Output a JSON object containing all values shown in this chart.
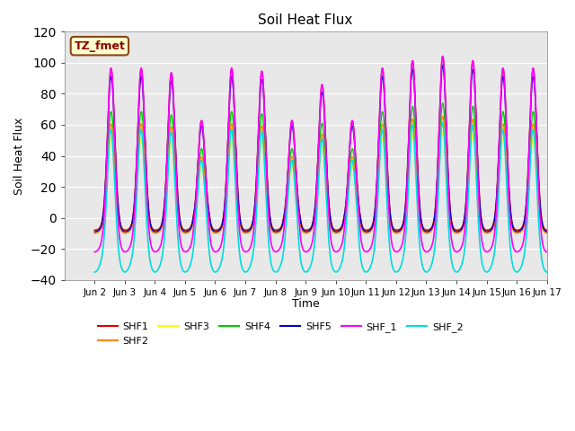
{
  "title": "Soil Heat Flux",
  "ylabel": "Soil Heat Flux",
  "xlabel": "Time",
  "xlim_days": [
    1,
    17
  ],
  "ylim": [
    -40,
    120
  ],
  "yticks": [
    -40,
    -20,
    0,
    20,
    40,
    60,
    80,
    100,
    120
  ],
  "xtick_labels": [
    "Jun 2",
    "Jun 3",
    "Jun 4",
    "Jun 5",
    "Jun 6",
    "Jun 7",
    "Jun 8",
    "Jun 9",
    "Jun 10",
    "Jun 11",
    "Jun 12",
    "Jun 13",
    "Jun 14",
    "Jun 15",
    "Jun 16",
    "Jun 17"
  ],
  "xtick_positions": [
    2,
    3,
    4,
    5,
    6,
    7,
    8,
    9,
    10,
    11,
    12,
    13,
    14,
    15,
    16,
    17
  ],
  "bg_color": "#e8e8e8",
  "series_order": [
    "SHF2",
    "SHF3",
    "SHF4",
    "SHF1",
    "SHF5",
    "SHF_1",
    "SHF_2"
  ],
  "series": {
    "SHF1": {
      "color": "#dd0000",
      "lw": 1.0
    },
    "SHF2": {
      "color": "#ff8800",
      "lw": 1.0
    },
    "SHF3": {
      "color": "#ffff00",
      "lw": 1.0
    },
    "SHF4": {
      "color": "#00cc00",
      "lw": 1.0
    },
    "SHF5": {
      "color": "#0000cc",
      "lw": 1.0
    },
    "SHF_1": {
      "color": "#ff00ff",
      "lw": 1.2
    },
    "SHF_2": {
      "color": "#00dddd",
      "lw": 1.2
    }
  },
  "annotation": {
    "text": "TZ_fmet",
    "facecolor": "#ffffcc",
    "edgecolor": "#8B4513",
    "textcolor": "#8B0000",
    "fontsize": 9,
    "fontweight": "bold"
  },
  "legend_ncol": 6,
  "peak_amps": {
    "SHF1": 100,
    "SHF2": 65,
    "SHF3": 55,
    "SHF4": 72,
    "SHF5": 95,
    "SHF_1": 106,
    "SHF_2": 72
  },
  "trough_amps": {
    "SHF1": 8,
    "SHF2": 10,
    "SHF3": 9,
    "SHF4": 8,
    "SHF5": 9,
    "SHF_1": 22,
    "SHF_2": 35
  },
  "day_peak_factors": [
    1.0,
    1.0,
    0.97,
    0.65,
    1.0,
    0.98,
    0.65,
    0.89,
    0.65,
    1.0,
    1.05,
    1.08,
    1.05,
    1.0,
    1.0
  ],
  "sharpness": 6
}
